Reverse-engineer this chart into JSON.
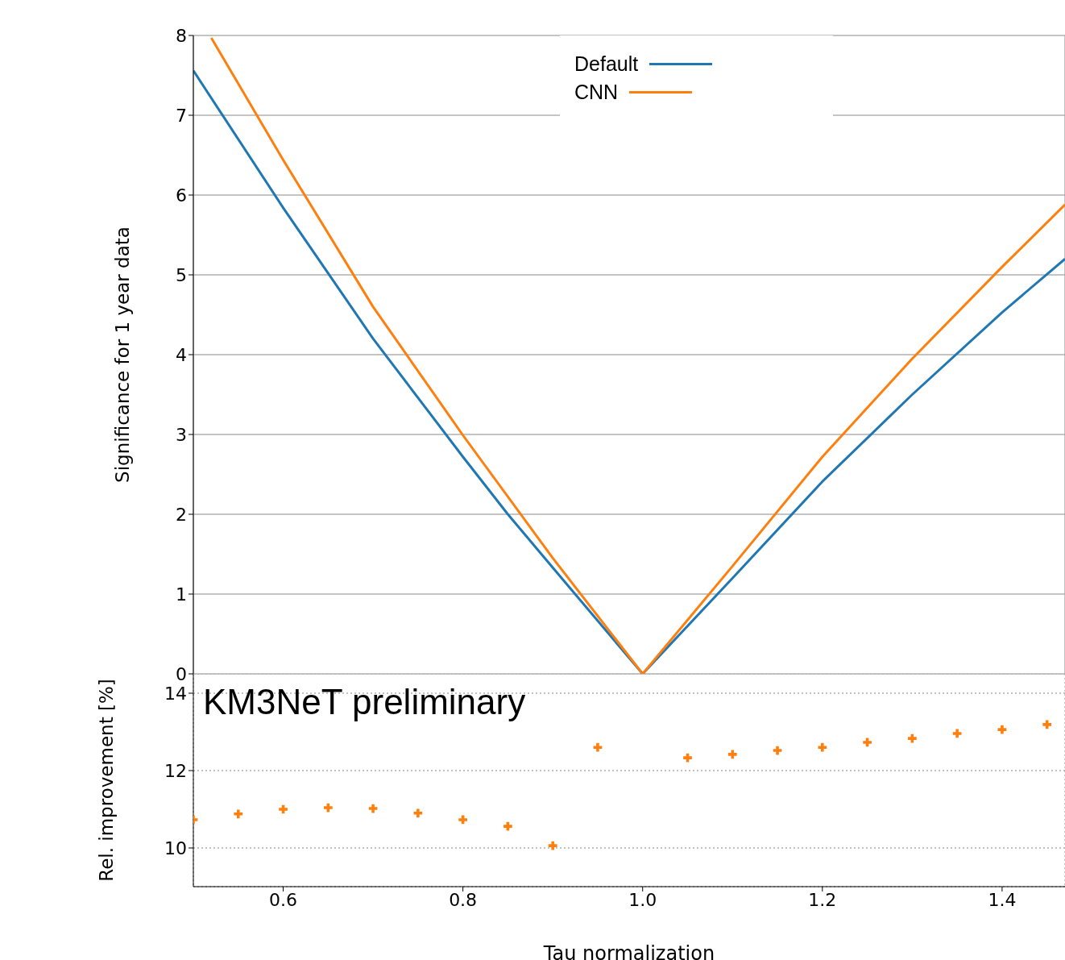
{
  "chart_data": [
    {
      "type": "line",
      "ylabel": "Significance for 1 year data",
      "xlim": [
        0.5,
        1.47
      ],
      "xticks": [
        0.6,
        0.8,
        1,
        1.2,
        1.4
      ],
      "ylim": [
        0,
        8
      ],
      "yticks": [
        0,
        1,
        2,
        3,
        4,
        5,
        6,
        7,
        8
      ],
      "grid": true,
      "legend": "top",
      "tick_labels": "y",
      "series": [
        {
          "name": "Default",
          "color": "#1f77b4",
          "x": [
            0.5,
            0.6,
            0.7,
            0.8,
            0.85,
            0.9,
            1.0,
            1.1,
            1.2,
            1.3,
            1.4,
            1.47
          ],
          "values": [
            7.56,
            5.84,
            4.2,
            2.72,
            2.0,
            1.33,
            0,
            1.2,
            2.41,
            3.5,
            4.53,
            5.2
          ]
        },
        {
          "name": "CNN",
          "color": "#ff7f0e",
          "x": [
            0.52,
            0.6,
            0.7,
            0.8,
            0.9,
            1.0,
            1.1,
            1.2,
            1.3,
            1.4,
            1.47
          ],
          "values": [
            7.97,
            6.44,
            4.6,
            2.99,
            1.45,
            0,
            1.35,
            2.72,
            3.95,
            5.1,
            5.88
          ]
        }
      ]
    },
    {
      "type": "scatter",
      "xlabel": "Tau normalization",
      "ylabel": "Rel. improvement [%]",
      "annotations": [
        "KM3NeT preliminary"
      ],
      "xlim": [
        0.5,
        1.47
      ],
      "xticks": [
        0.6,
        0.8,
        {
          "value": 1,
          "label": "1.0"
        },
        1.2,
        1.4
      ],
      "ylim": [
        9,
        14.5
      ],
      "yticks": [
        10,
        12,
        14
      ],
      "grid": true,
      "marker": "cross",
      "color": "#ff7f0e",
      "x": [
        0.5,
        0.55,
        0.6,
        0.65,
        0.7,
        0.75,
        0.8,
        0.85,
        0.9,
        0.95,
        1.05,
        1.1,
        1.15,
        1.2,
        1.25,
        1.3,
        1.35,
        1.4,
        1.45
      ],
      "values": [
        10.73,
        10.88,
        11.0,
        11.04,
        11.02,
        10.9,
        10.73,
        10.56,
        10.06,
        12.6,
        12.33,
        12.42,
        12.52,
        12.6,
        12.73,
        12.83,
        12.96,
        13.06,
        13.19
      ]
    }
  ]
}
